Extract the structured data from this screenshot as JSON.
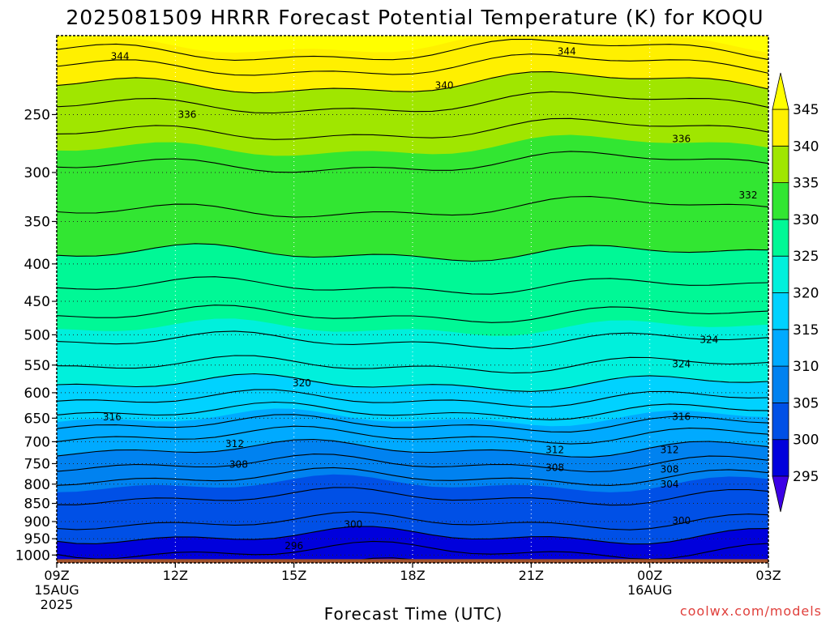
{
  "chart_data": {
    "type": "heatmap",
    "title": "2025081509 HRRR Forecast Potential Temperature (K) for KOQU",
    "xlabel": "Forecast Time (UTC)",
    "ylabel": "",
    "x_ticks": [
      {
        "hour": 0,
        "label": "09Z",
        "sub": [
          "15AUG",
          "2025"
        ]
      },
      {
        "hour": 3,
        "label": "12Z",
        "sub": []
      },
      {
        "hour": 6,
        "label": "15Z",
        "sub": []
      },
      {
        "hour": 9,
        "label": "18Z",
        "sub": []
      },
      {
        "hour": 12,
        "label": "21Z",
        "sub": []
      },
      {
        "hour": 15,
        "label": "00Z",
        "sub": [
          "16AUG"
        ]
      },
      {
        "hour": 18,
        "label": "03Z",
        "sub": []
      }
    ],
    "xlim": [
      0,
      18
    ],
    "y_ticks": [
      "1000",
      "950",
      "900",
      "850",
      "800",
      "750",
      "700",
      "650",
      "600",
      "550",
      "500",
      "450",
      "400",
      "350",
      "300",
      "250"
    ],
    "y_scale": "log-pressure",
    "ylim_hpa": [
      1025,
      195
    ],
    "colorbar": {
      "levels": [
        295,
        300,
        305,
        310,
        315,
        320,
        325,
        330,
        335,
        340,
        345
      ],
      "tick_labels": [
        "295",
        "300",
        "305",
        "310",
        "315",
        "320",
        "325",
        "330",
        "335",
        "340",
        "345"
      ],
      "colors": [
        "#3c00e6",
        "#0000dc",
        "#0050e6",
        "#0082f0",
        "#00aaff",
        "#00d2ff",
        "#00f0dc",
        "#00f896",
        "#32e632",
        "#a0e600",
        "#fff000",
        "#ffff00"
      ]
    },
    "theta_profile_09z": [
      {
        "p": 1000,
        "theta": 297.5
      },
      {
        "p": 975,
        "theta": 298.5
      },
      {
        "p": 950,
        "theta": 299.5
      },
      {
        "p": 925,
        "theta": 301
      },
      {
        "p": 900,
        "theta": 302
      },
      {
        "p": 850,
        "theta": 303.5
      },
      {
        "p": 800,
        "theta": 305
      },
      {
        "p": 750,
        "theta": 308
      },
      {
        "p": 700,
        "theta": 311
      },
      {
        "p": 650,
        "theta": 315
      },
      {
        "p": 600,
        "theta": 319
      },
      {
        "p": 550,
        "theta": 322
      },
      {
        "p": 500,
        "theta": 324.5
      },
      {
        "p": 450,
        "theta": 327
      },
      {
        "p": 400,
        "theta": 329.5
      },
      {
        "p": 350,
        "theta": 331.5
      },
      {
        "p": 300,
        "theta": 333.5
      },
      {
        "p": 250,
        "theta": 337
      },
      {
        "p": 220,
        "theta": 341
      },
      {
        "p": 200,
        "theta": 345
      }
    ],
    "contour_interval_k": 2,
    "contour_labels": [
      {
        "text": "344",
        "hour": 1.6,
        "p": 208
      },
      {
        "text": "344",
        "hour": 12.9,
        "p": 205
      },
      {
        "text": "340",
        "hour": 9.8,
        "p": 228
      },
      {
        "text": "336",
        "hour": 3.3,
        "p": 250
      },
      {
        "text": "336",
        "hour": 15.8,
        "p": 270
      },
      {
        "text": "332",
        "hour": 19.1,
        "p": 322
      },
      {
        "text": "324",
        "hour": 16.5,
        "p": 508
      },
      {
        "text": "324",
        "hour": 15.8,
        "p": 548
      },
      {
        "text": "320",
        "hour": 6.2,
        "p": 582
      },
      {
        "text": "316",
        "hour": 1.4,
        "p": 648
      },
      {
        "text": "316",
        "hour": 15.8,
        "p": 647
      },
      {
        "text": "312",
        "hour": 4.5,
        "p": 705
      },
      {
        "text": "312",
        "hour": 12.6,
        "p": 718
      },
      {
        "text": "312",
        "hour": 15.5,
        "p": 718
      },
      {
        "text": "308",
        "hour": 4.6,
        "p": 752
      },
      {
        "text": "308",
        "hour": 12.6,
        "p": 760
      },
      {
        "text": "308",
        "hour": 15.5,
        "p": 764
      },
      {
        "text": "304",
        "hour": 15.5,
        "p": 800
      },
      {
        "text": "300",
        "hour": 7.5,
        "p": 908
      },
      {
        "text": "300",
        "hour": 15.8,
        "p": 898
      },
      {
        "text": "296",
        "hour": 6.0,
        "p": 972
      }
    ],
    "grid": true
  },
  "credit": "coolwx.com/models"
}
